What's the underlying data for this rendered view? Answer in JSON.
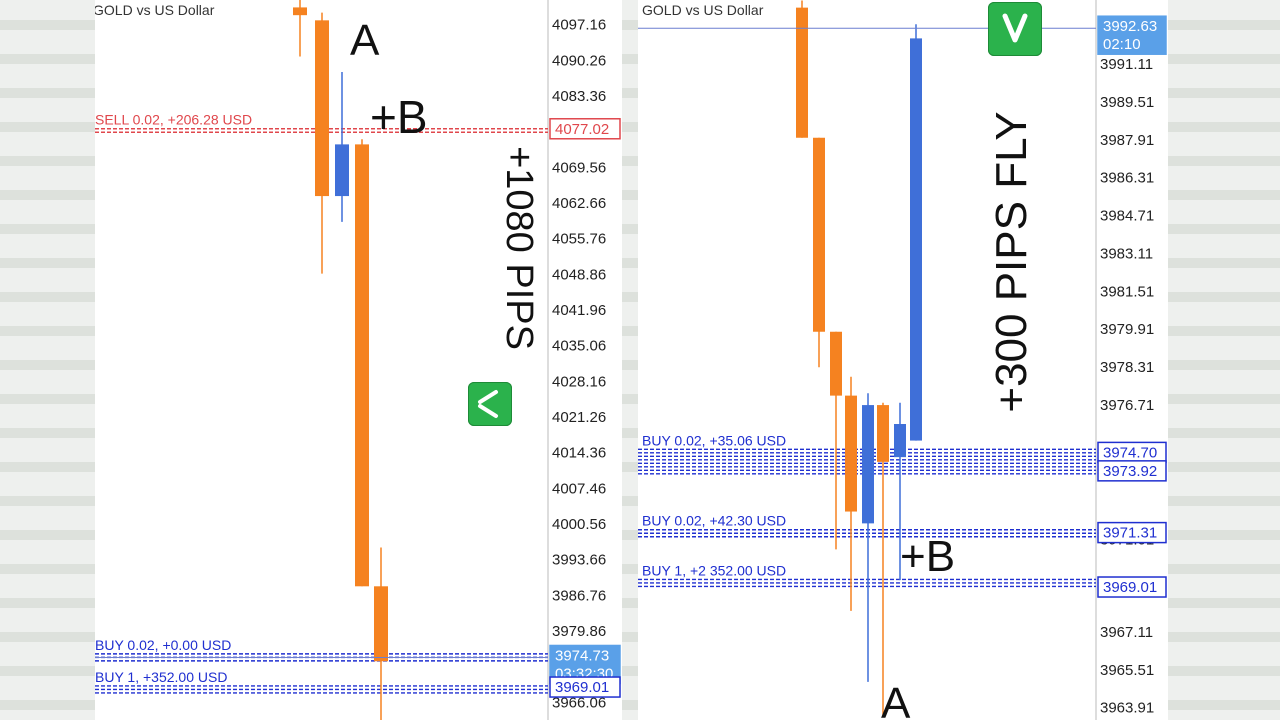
{
  "colors": {
    "bear_candle": "#f58220",
    "bull_candle": "#3f6fd8",
    "buy_line": "#1f2fd0",
    "sell_line": "#e0474c",
    "price_tag": "#5aa0e8",
    "check_green": "#2bb24c"
  },
  "icons": [
    "check-icon"
  ],
  "chart_data": [
    {
      "type": "candlestick",
      "title": "GOLD vs US Dollar",
      "y_ticks": [
        "4097.16",
        "4090.26",
        "4083.36",
        "4069.56",
        "4062.66",
        "4055.76",
        "4048.86",
        "4041.96",
        "4035.06",
        "4028.16",
        "4021.26",
        "4014.36",
        "4007.46",
        "4000.56",
        "3993.66",
        "3986.76",
        "3979.86",
        "3966.06"
      ],
      "ylim": [
        3963.6,
        4100.0
      ],
      "candles": [
        {
          "o": 4100.5,
          "h": 4102.0,
          "l": 4091.0,
          "c": 4099.0
        },
        {
          "o": 4098.0,
          "h": 4099.5,
          "l": 4049.0,
          "c": 4064.0
        },
        {
          "o": 4064.0,
          "h": 4088.0,
          "l": 4059.0,
          "c": 4074.0
        },
        {
          "o": 4074.0,
          "h": 4075.0,
          "l": 3988.5,
          "c": 3988.5
        },
        {
          "o": 3988.5,
          "h": 3996.0,
          "l": 3962.0,
          "c": 3974.0
        }
      ],
      "price_tags": [
        {
          "label": "4077.02",
          "price": 4077.02,
          "style": "sell"
        },
        {
          "label": "3974.73",
          "time": "03:32:30",
          "price": 3974.73,
          "style": "current"
        },
        {
          "label": "3969.01",
          "price": 3969.01,
          "style": "buy"
        }
      ],
      "trade_labels": [
        {
          "text": "SELL 0.02, +206.28 USD",
          "price": 4077.8,
          "style": "sell"
        },
        {
          "text": "BUY 0.02, +0.00 USD",
          "price": 3976.2,
          "style": "buy"
        },
        {
          "text": "BUY 1, +352.00 USD",
          "price": 3970.0,
          "style": "buy"
        }
      ],
      "annotations": {
        "a": "A",
        "b": "+B",
        "pips": "+1080 PIPS"
      }
    },
    {
      "type": "candlestick",
      "title": "GOLD vs US Dollar",
      "y_ticks": [
        "3991.11",
        "3989.51",
        "3987.91",
        "3986.31",
        "3984.71",
        "3983.11",
        "3981.51",
        "3979.91",
        "3978.31",
        "3976.71",
        "3971.01",
        "3967.11",
        "3965.51",
        "3963.91"
      ],
      "ylim": [
        3963.6,
        3993.4
      ],
      "candles": [
        {
          "o": 3993.5,
          "h": 3993.8,
          "l": 3988.0,
          "c": 3988.0
        },
        {
          "o": 3988.0,
          "h": 3988.0,
          "l": 3978.3,
          "c": 3979.8
        },
        {
          "o": 3979.8,
          "h": 3979.8,
          "l": 3970.6,
          "c": 3977.1
        },
        {
          "o": 3977.1,
          "h": 3977.9,
          "l": 3968.0,
          "c": 3972.2
        },
        {
          "o": 3971.7,
          "h": 3977.2,
          "l": 3965.0,
          "c": 3976.7
        },
        {
          "o": 3976.7,
          "h": 3976.8,
          "l": 3963.5,
          "c": 3974.3
        },
        {
          "o": 3974.5,
          "h": 3976.8,
          "l": 3969.3,
          "c": 3975.9
        },
        {
          "o": 3975.2,
          "h": 3992.8,
          "l": 3975.2,
          "c": 3992.2
        }
      ],
      "price_tags": [
        {
          "label": "3992.63",
          "time": "02:10",
          "price": 3992.63,
          "style": "current"
        },
        {
          "label": "3974.70",
          "price": 3974.7,
          "style": "buy"
        },
        {
          "label": "3973.92",
          "price": 3973.92,
          "style": "buy"
        },
        {
          "label": "3971.31",
          "price": 3971.31,
          "style": "buy"
        },
        {
          "label": "3969.01",
          "price": 3969.01,
          "style": "buy"
        }
      ],
      "trade_labels": [
        {
          "text": "BUY 0.02, +35.06 USD",
          "price": 3975.0,
          "style": "buy"
        },
        {
          "text": "BUY 0.02, +42.30 USD",
          "price": 3971.6,
          "style": "buy"
        },
        {
          "text": "BUY 1, +2 352.00 USD",
          "price": 3969.5,
          "style": "buy"
        }
      ],
      "annotations": {
        "a": "A",
        "b": "+B",
        "pips": "+300 PIPS FLY"
      }
    }
  ]
}
